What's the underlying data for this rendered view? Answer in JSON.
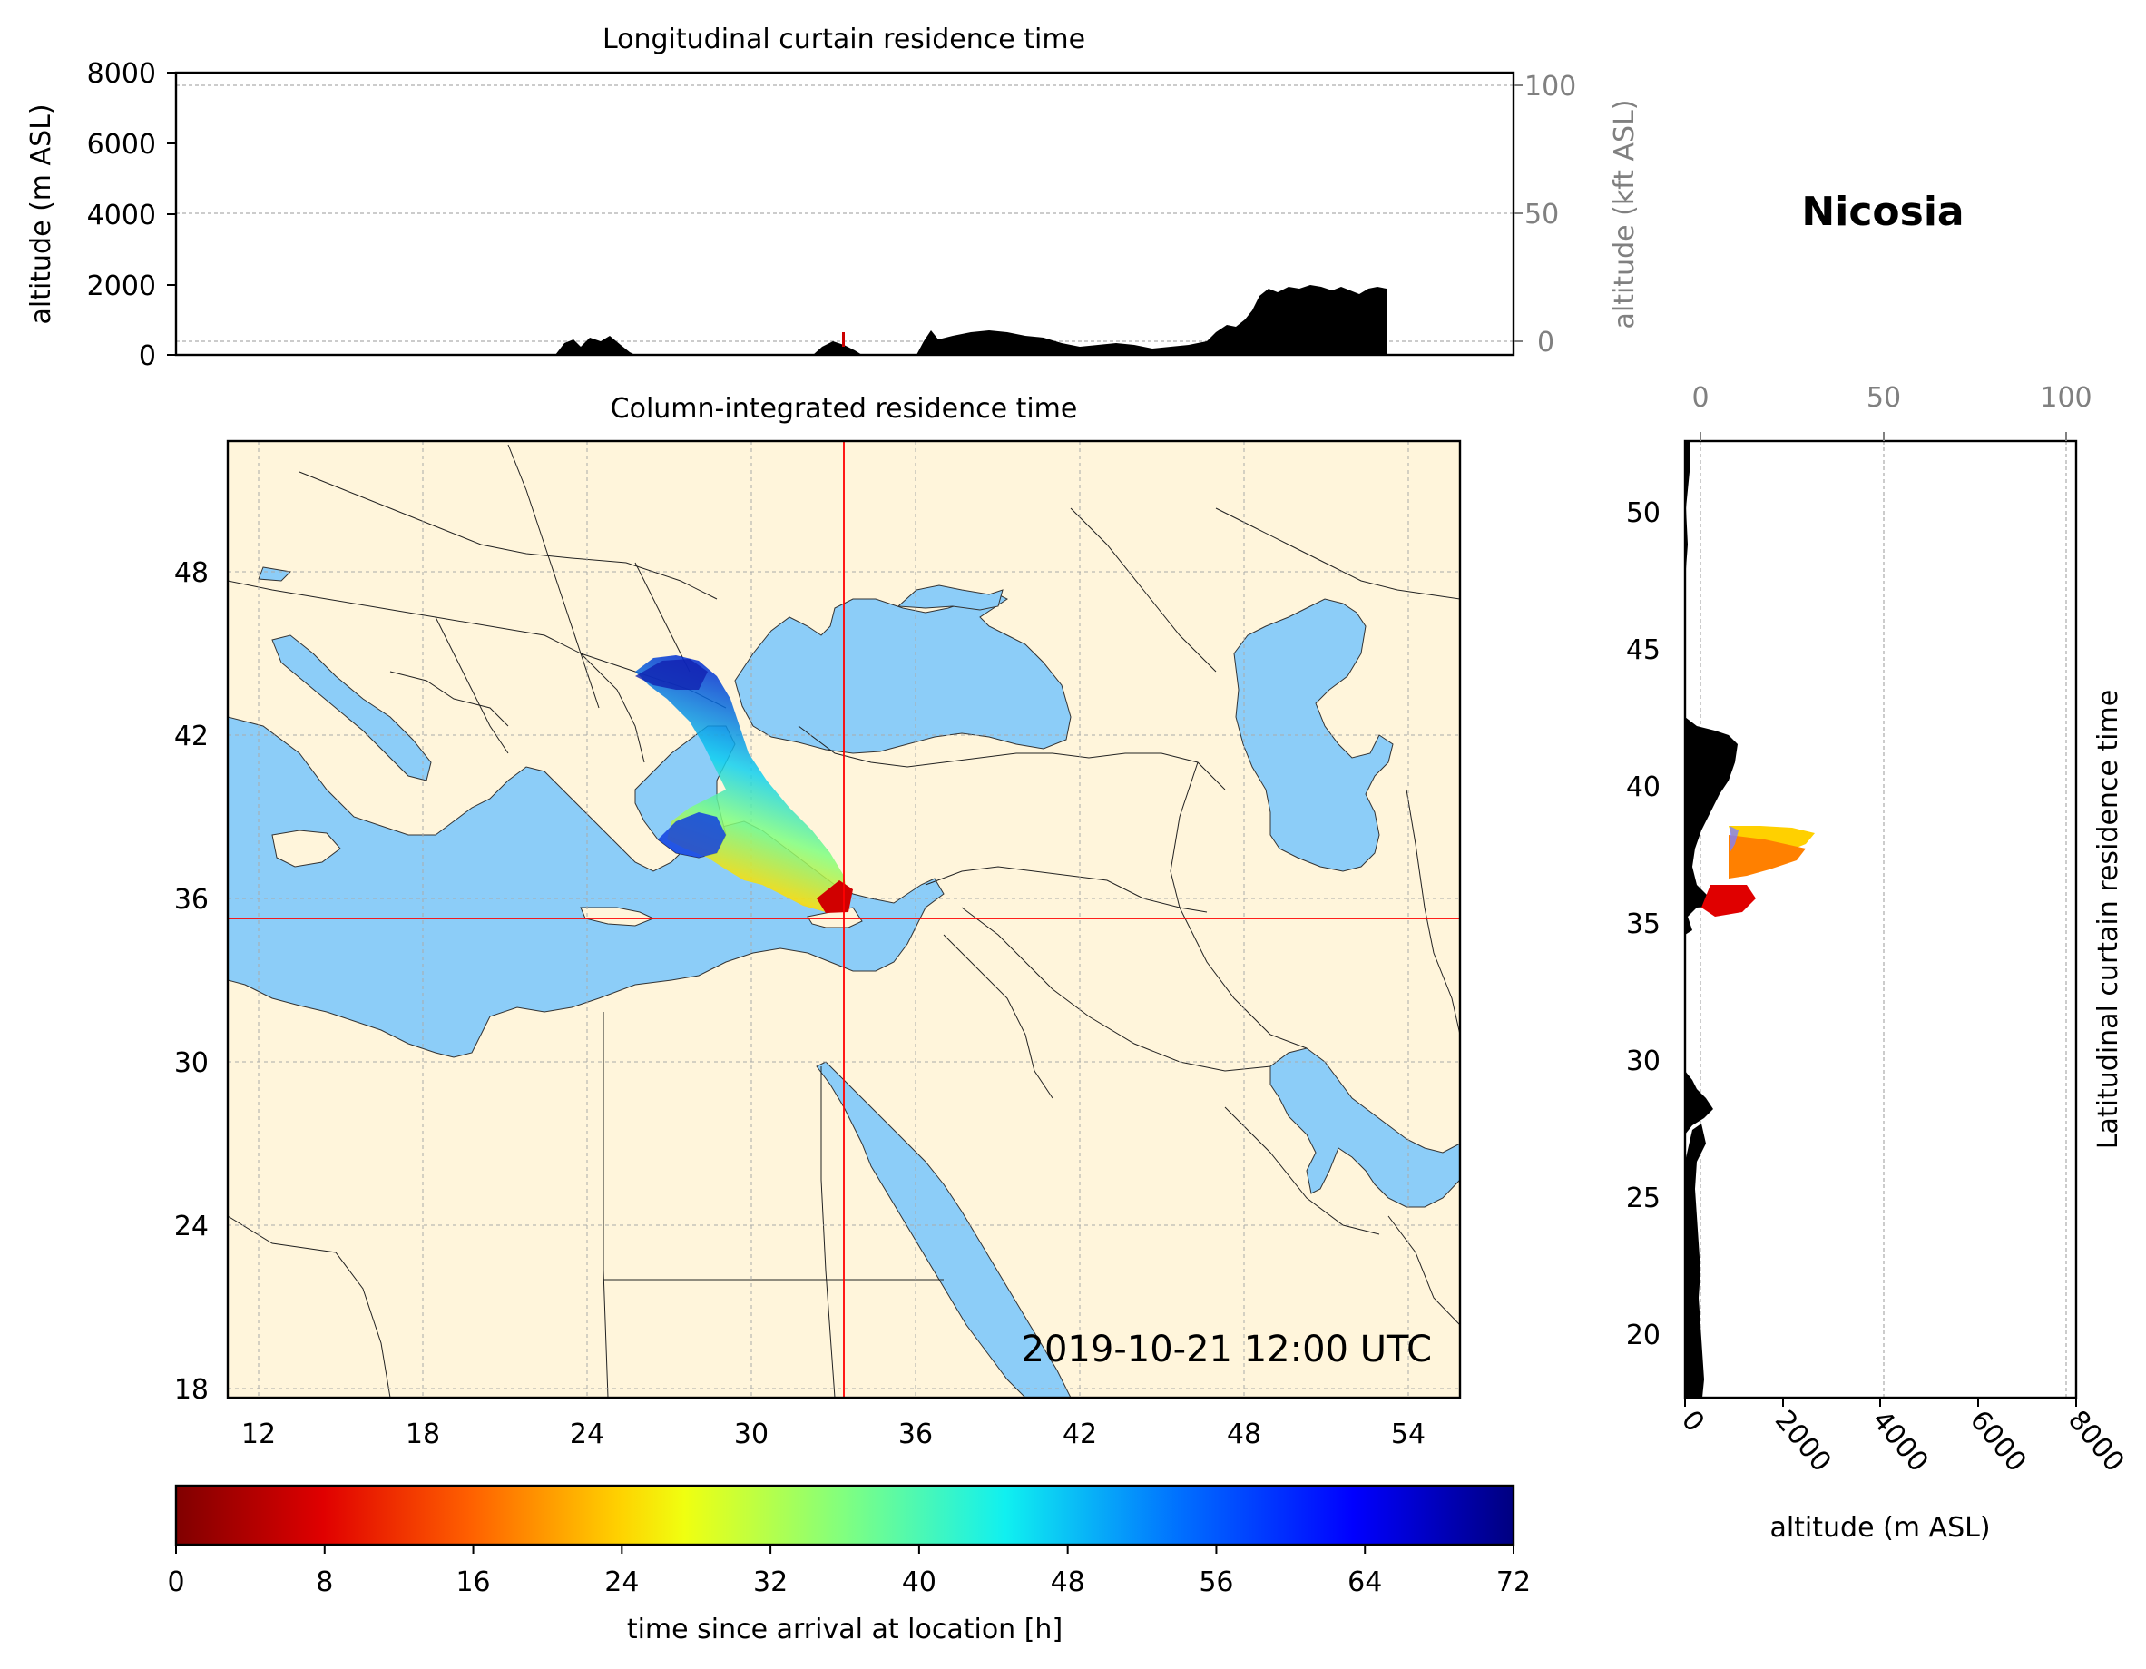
{
  "station": "Nicosia",
  "timestamp": "2019-10-21 12:00 UTC",
  "top_panel": {
    "title": "Longitudinal curtain residence time",
    "ylabel_left": "altitude (m ASL)",
    "ylabel_right": "altitude (kft ASL)",
    "yticks_left": [
      "0",
      "2000",
      "4000",
      "6000",
      "8000"
    ],
    "yticks_right": [
      "0",
      "50",
      "100"
    ]
  },
  "map_panel": {
    "title": "Column-integrated residence time",
    "xticks": [
      "12",
      "18",
      "24",
      "30",
      "36",
      "42",
      "48",
      "54"
    ],
    "yticks": [
      "18",
      "24",
      "30",
      "36",
      "42",
      "48"
    ],
    "crosshair": {
      "lon": 33.4,
      "lat": 35.2
    },
    "colors": {
      "land": "#fff5db",
      "water": "#8ccdf8",
      "crosshair": "#ff0000"
    }
  },
  "side_panel": {
    "label": "Latitudinal curtain residence time",
    "xlabel": "altitude (m ASL)",
    "xticks_bottom": [
      "0",
      "2000",
      "4000",
      "6000",
      "8000"
    ],
    "xticks_top": [
      "0",
      "50",
      "100"
    ],
    "yticks": [
      "20",
      "25",
      "30",
      "35",
      "40",
      "45",
      "50"
    ]
  },
  "colorbar": {
    "label": "time since arrival at location [h]",
    "ticks": [
      "0",
      "8",
      "16",
      "24",
      "32",
      "40",
      "48",
      "56",
      "64",
      "72"
    ],
    "range": [
      0,
      72
    ]
  }
}
